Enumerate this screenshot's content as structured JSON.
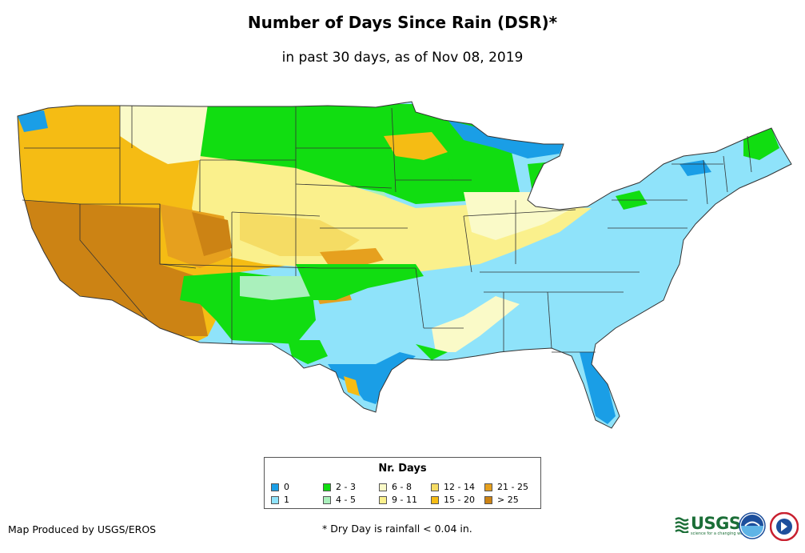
{
  "title": "Number of Days Since Rain (DSR)*",
  "subtitle": "in past 30 days, as of Nov 08, 2019",
  "legend": {
    "title": "Nr. Days",
    "items": [
      {
        "label": "0",
        "color": "#1a9ee6"
      },
      {
        "label": "1",
        "color": "#8fe3fa"
      },
      {
        "label": "2 - 3",
        "color": "#11dd11"
      },
      {
        "label": "4 - 5",
        "color": "#aaf0bc"
      },
      {
        "label": "6 - 8",
        "color": "#fafac8"
      },
      {
        "label": "9 - 11",
        "color": "#faf08c"
      },
      {
        "label": "12 - 14",
        "color": "#f5dc64"
      },
      {
        "label": "15 - 20",
        "color": "#f5bc14"
      },
      {
        "label": "21 - 25",
        "color": "#e6a01e"
      },
      {
        "label": "> 25",
        "color": "#cc8314"
      }
    ]
  },
  "credit": "Map Produced by USGS/EROS",
  "footnote": "* Dry Day is rainfall < 0.04 in.",
  "logos": {
    "usgs_text": "USGS",
    "usgs_tagline": "science for a changing world"
  }
}
